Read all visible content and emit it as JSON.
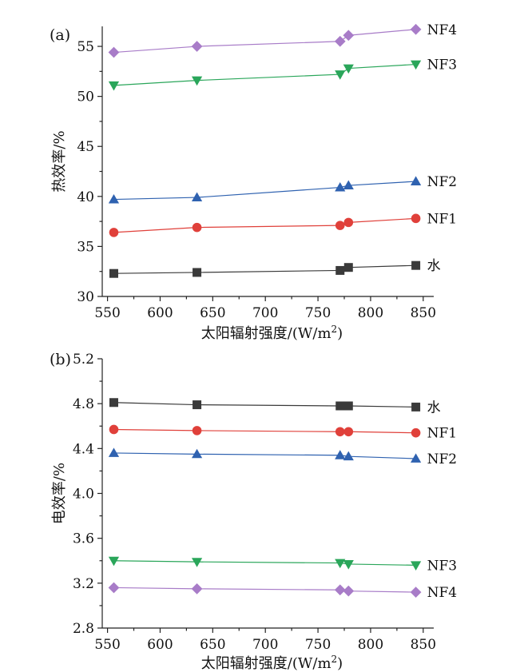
{
  "chart_data": [
    {
      "type": "line",
      "panel_label": "(a)",
      "xlabel_main": "太阳辐射强度/(W/m",
      "xlabel_sup": "2",
      "xlabel_close": ")",
      "ylabel": "热效率/%",
      "xlim": [
        545,
        860
      ],
      "ylim": [
        30,
        57
      ],
      "x_ticks": [
        "550",
        "600",
        "650",
        "700",
        "750",
        "800",
        "850"
      ],
      "y_ticks": [
        "30",
        "35",
        "40",
        "45",
        "50",
        "55"
      ],
      "x": [
        556,
        635,
        771,
        779,
        843
      ],
      "series": [
        {
          "name": "NF4",
          "marker": "diamond",
          "color": "#a87cc8",
          "values": [
            54.4,
            55.0,
            55.5,
            56.1,
            56.7
          ]
        },
        {
          "name": "NF3",
          "marker": "triangle-down",
          "color": "#2aa65a",
          "values": [
            51.1,
            51.6,
            52.2,
            52.8,
            53.2
          ]
        },
        {
          "name": "NF2",
          "marker": "triangle-up",
          "color": "#2f62b0",
          "values": [
            39.7,
            39.9,
            40.9,
            41.1,
            41.5
          ]
        },
        {
          "name": "NF1",
          "marker": "circle",
          "color": "#e0403a",
          "values": [
            36.4,
            36.9,
            37.1,
            37.4,
            37.8
          ]
        },
        {
          "name": "水",
          "marker": "square",
          "color": "#3a3a3a",
          "values": [
            32.3,
            32.4,
            32.6,
            32.9,
            33.1
          ]
        }
      ]
    },
    {
      "type": "line",
      "panel_label": "(b)",
      "xlabel_main": "太阳辐射强度/(W/m",
      "xlabel_sup": "2",
      "xlabel_close": ")",
      "ylabel": "电效率/%",
      "xlim": [
        545,
        860
      ],
      "ylim": [
        2.8,
        5.2
      ],
      "x_ticks": [
        "550",
        "600",
        "650",
        "700",
        "750",
        "800",
        "850"
      ],
      "y_ticks": [
        "2.8",
        "3.2",
        "3.6",
        "4.0",
        "4.4",
        "4.8",
        "5.2"
      ],
      "x": [
        556,
        635,
        771,
        779,
        843
      ],
      "series": [
        {
          "name": "水",
          "marker": "square",
          "color": "#3a3a3a",
          "values": [
            4.81,
            4.79,
            4.78,
            4.78,
            4.77
          ]
        },
        {
          "name": "NF1",
          "marker": "circle",
          "color": "#e0403a",
          "values": [
            4.57,
            4.56,
            4.55,
            4.55,
            4.54
          ]
        },
        {
          "name": "NF2",
          "marker": "triangle-up",
          "color": "#2f62b0",
          "values": [
            4.36,
            4.35,
            4.34,
            4.33,
            4.31
          ]
        },
        {
          "name": "NF3",
          "marker": "triangle-down",
          "color": "#2aa65a",
          "values": [
            3.4,
            3.39,
            3.38,
            3.37,
            3.36
          ]
        },
        {
          "name": "NF4",
          "marker": "diamond",
          "color": "#a87cc8",
          "values": [
            3.16,
            3.15,
            3.14,
            3.13,
            3.12
          ]
        }
      ]
    }
  ]
}
